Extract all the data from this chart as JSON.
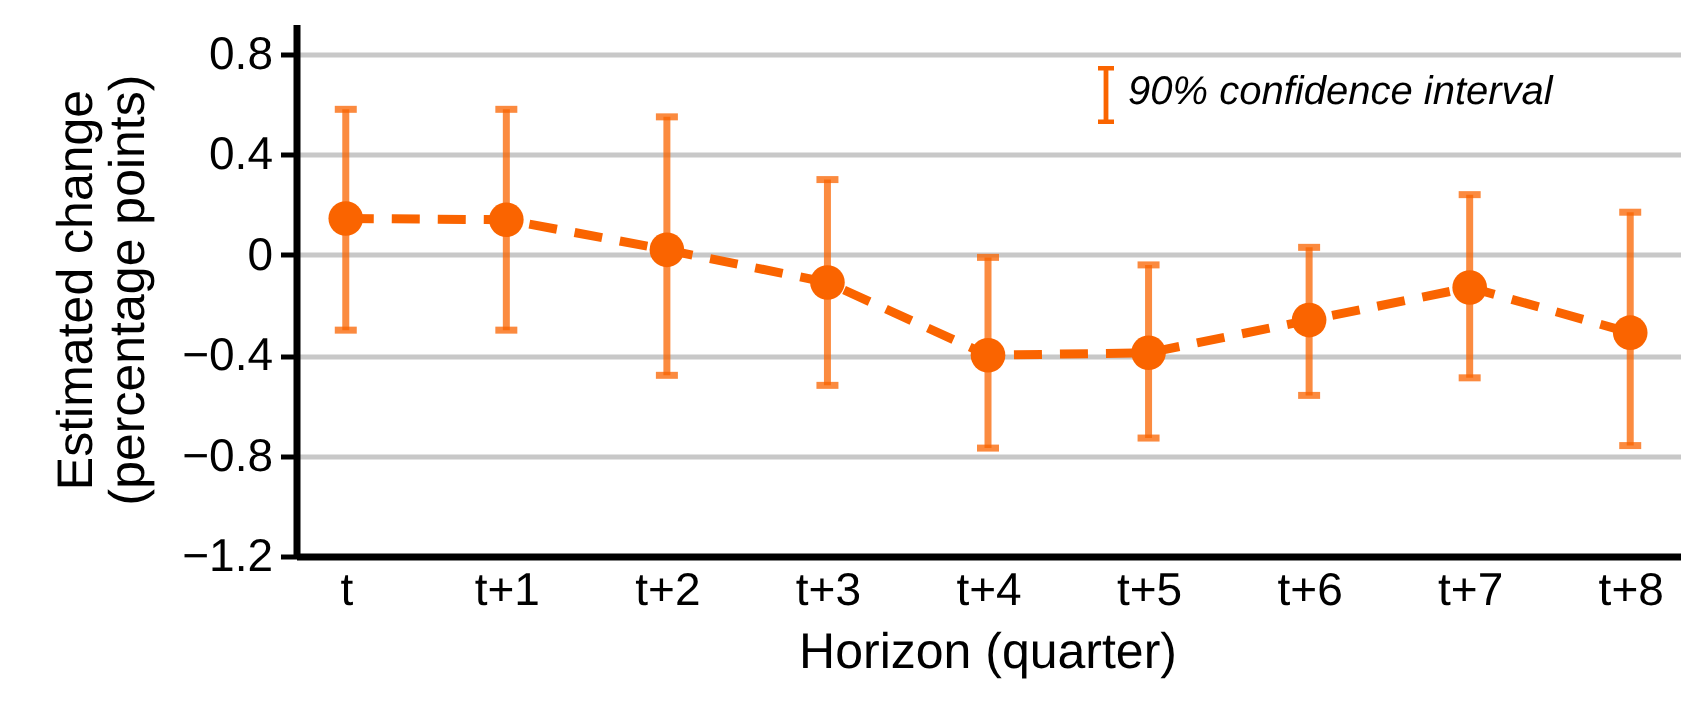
{
  "chart_data": {
    "type": "line",
    "xlabel": "Horizon (quarter)",
    "ylabel": "Estimated change\n(percentage points)",
    "categories": [
      "t",
      "t+1",
      "t+2",
      "t+3",
      "t+4",
      "t+5",
      "t+6",
      "t+7",
      "t+8"
    ],
    "series": [
      {
        "color": "#fa6400",
        "values": [
          0.145,
          0.14,
          0.02,
          -0.11,
          -0.4,
          -0.39,
          -0.26,
          -0.13,
          -0.31
        ],
        "errors": [
          [
            -0.3,
            0.58
          ],
          [
            -0.3,
            0.58
          ],
          [
            -0.48,
            0.55
          ],
          [
            -0.52,
            0.3
          ],
          [
            -0.77,
            -0.01
          ],
          [
            -0.73,
            -0.04
          ],
          [
            -0.56,
            0.03
          ],
          [
            -0.49,
            0.24
          ],
          [
            -0.76,
            0.17
          ]
        ]
      }
    ],
    "ylim": [
      -1.2,
      0.92
    ],
    "yticks": [
      -1.2,
      -0.8,
      -0.4,
      0,
      0.4,
      0.8
    ],
    "grid": "y",
    "marker": "circle",
    "line_style": "dashed",
    "annotations": [
      "90% confidence interval"
    ]
  }
}
